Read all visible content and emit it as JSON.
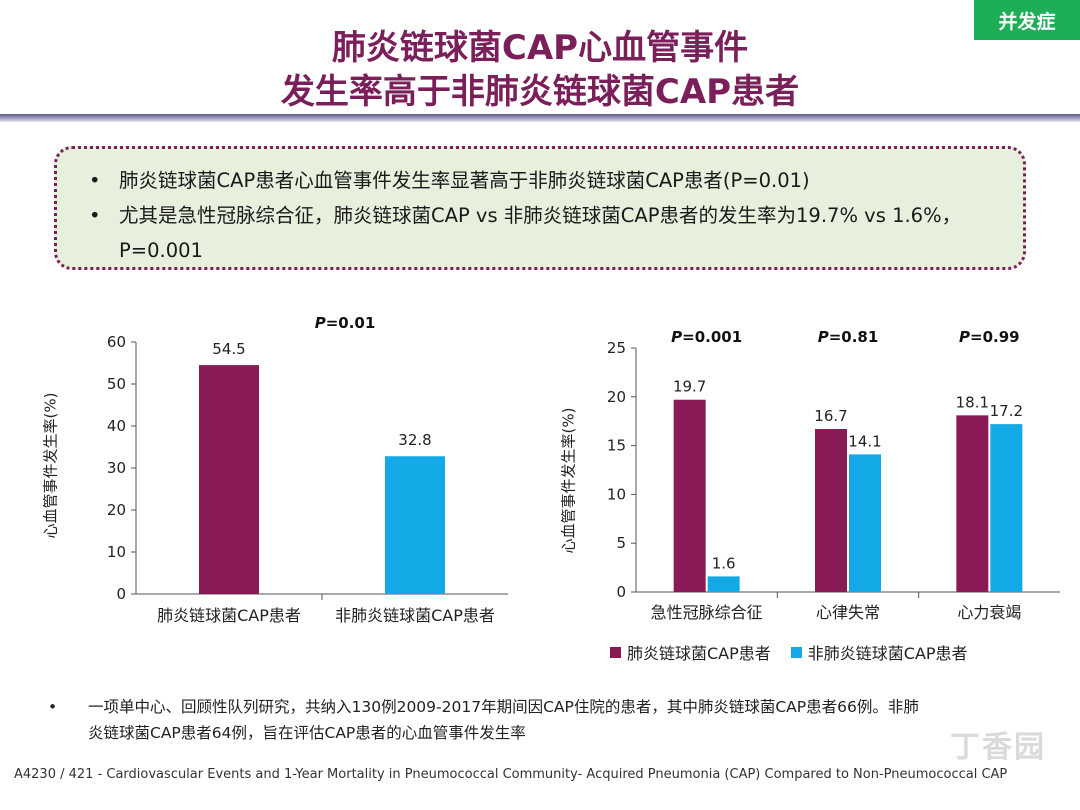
{
  "tag": "并发症",
  "title": {
    "line1": "肺炎链球菌CAP心血管事件",
    "line2": "发生率高于非肺炎链球菌CAP患者"
  },
  "callout": {
    "bullet": "•",
    "item1": "肺炎链球菌CAP患者心血管事件发生率显著高于非肺炎链球菌CAP患者(P=0.01)",
    "item2": "尤其是急性冠脉综合征，肺炎链球菌CAP vs 非肺炎链球菌CAP患者的发生率为19.7% vs 1.6%， P=0.001"
  },
  "colors": {
    "pneumo": "#8a1a56",
    "non_pneumo": "#13a9e6",
    "title": "#7a1f5a",
    "tag": "#1fae58"
  },
  "chart_data": [
    {
      "type": "bar",
      "ylabel": "心血管事件发生率(%)",
      "ylim": [
        0,
        60
      ],
      "yticks": [
        0,
        10,
        20,
        30,
        40,
        50,
        60
      ],
      "categories": [
        "肺炎链球菌CAP患者",
        "非肺炎链球菌CAP患者"
      ],
      "values": [
        54.5,
        32.8
      ],
      "bar_colors": [
        "#8a1a56",
        "#13a9e6"
      ],
      "annotation": "P=0.01"
    },
    {
      "type": "bar",
      "ylabel": "心血管事件发生率(%)",
      "ylim": [
        0,
        25
      ],
      "yticks": [
        0,
        5,
        10,
        15,
        20,
        25
      ],
      "categories": [
        "急性冠脉综合征",
        "心律失常",
        "心力衰竭"
      ],
      "series": [
        {
          "name": "肺炎链球菌CAP患者",
          "values": [
            19.7,
            16.7,
            18.1
          ]
        },
        {
          "name": "非肺炎链球菌CAP患者",
          "values": [
            1.6,
            14.1,
            17.2
          ]
        }
      ],
      "pvalues": [
        "P=0.001",
        "P=0.81",
        "P=0.99"
      ],
      "legend": "bottom"
    }
  ],
  "note": {
    "bullet": "•",
    "line1": "一项单中心、回顾性队列研究，共纳入130例2009-2017年期间因CAP住院的患者，其中肺炎链球菌CAP患者66例。非肺",
    "line2": "炎链球菌CAP患者64例，旨在评估CAP患者的心血管事件发生率"
  },
  "footer": "A4230 / 421 - Cardiovascular Events and 1-Year Mortality in Pneumococcal Community- Acquired Pneumonia (CAP) Compared to Non-Pneumococcal CAP",
  "watermark": "丁香园"
}
